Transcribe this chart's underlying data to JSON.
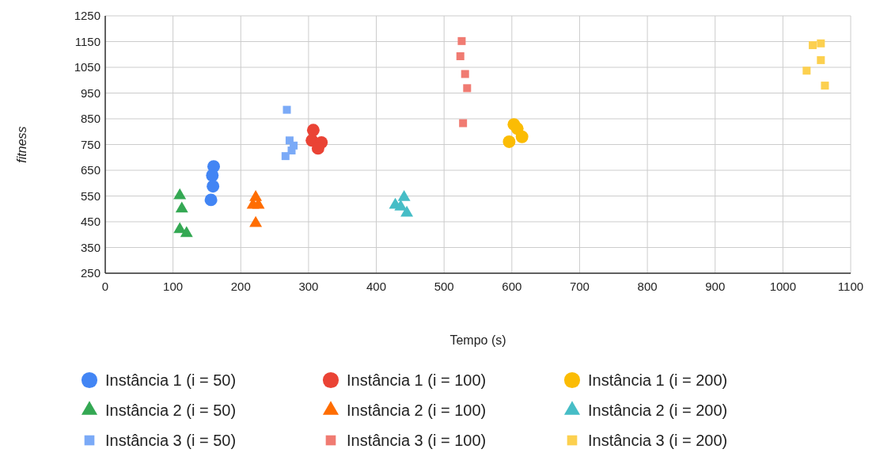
{
  "chart_data": {
    "type": "scatter",
    "xlabel": "Tempo (s)",
    "ylabel": "fitness",
    "xlim": [
      0,
      1100
    ],
    "xticks": [
      0,
      100,
      200,
      300,
      400,
      500,
      600,
      700,
      800,
      900,
      1000,
      1100
    ],
    "ylim": [
      250,
      1250
    ],
    "yticks": [
      250,
      350,
      450,
      550,
      650,
      750,
      850,
      950,
      1050,
      1150,
      1250
    ],
    "grid": true,
    "legend": "bottom",
    "series": [
      {
        "name": "Instância 1 (i = 50)",
        "color": "#4285f4",
        "marker": "circle",
        "x": [
          160,
          158,
          159,
          156
        ],
        "values": [
          665,
          630,
          588,
          535
        ]
      },
      {
        "name": "Instância 1 (i = 100)",
        "color": "#ea4335",
        "marker": "circle",
        "x": [
          307,
          305,
          319,
          314
        ],
        "values": [
          806,
          766,
          758,
          735
        ]
      },
      {
        "name": "Instância 1 (i = 200)",
        "color": "#fbbc04",
        "marker": "circle",
        "x": [
          603,
          608,
          615,
          596
        ],
        "values": [
          828,
          812,
          780,
          761
        ]
      },
      {
        "name": "Instância 2 (i = 50)",
        "color": "#34a853",
        "marker": "triangle",
        "x": [
          110,
          113,
          110,
          120
        ],
        "values": [
          552,
          500,
          420,
          405
        ]
      },
      {
        "name": "Instância 2 (i = 100)",
        "color": "#ff6d01",
        "marker": "triangle",
        "x": [
          222,
          218,
          226,
          222
        ],
        "values": [
          545,
          515,
          515,
          444
        ]
      },
      {
        "name": "Instância 2 (i = 200)",
        "color": "#46bdc6",
        "marker": "triangle",
        "x": [
          441,
          428,
          436,
          445
        ],
        "values": [
          545,
          515,
          508,
          484
        ]
      },
      {
        "name": "Instância 3 (i = 50)",
        "color": "#7baaf7",
        "marker": "square",
        "x": [
          268,
          272,
          278,
          275,
          266
        ],
        "values": [
          885,
          766,
          746,
          727,
          705
        ]
      },
      {
        "name": "Instância 3 (i = 100)",
        "color": "#f07b72",
        "marker": "square",
        "x": [
          526,
          524,
          531,
          534,
          528
        ],
        "values": [
          1152,
          1093,
          1024,
          969,
          833
        ]
      },
      {
        "name": "Instância 3 (i = 200)",
        "color": "#fcd04f",
        "marker": "square",
        "x": [
          1044,
          1056,
          1056,
          1035,
          1062
        ],
        "values": [
          1136,
          1143,
          1078,
          1037,
          979
        ]
      }
    ]
  }
}
